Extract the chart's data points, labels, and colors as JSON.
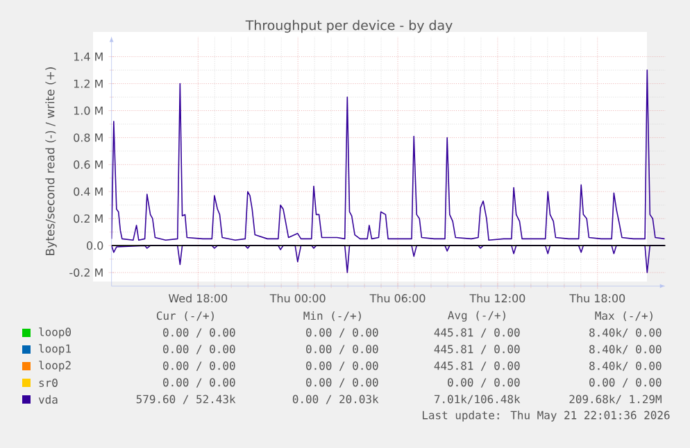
{
  "chart_data": {
    "type": "line",
    "title": "Throughput per device - by day",
    "ylabel": "Bytes/second read (-) / write (+)",
    "xlim": [
      "2026-05-20T12:48",
      "2026-05-21T22:05"
    ],
    "xticks": [
      {
        "value": "2026-05-20T18:00",
        "label": "Wed 18:00"
      },
      {
        "value": "2026-05-21T00:00",
        "label": "Thu 00:00"
      },
      {
        "value": "2026-05-21T06:00",
        "label": "Thu 06:00"
      },
      {
        "value": "2026-05-21T12:00",
        "label": "Thu 12:00"
      },
      {
        "value": "2026-05-21T18:00",
        "label": "Thu 18:00"
      }
    ],
    "ylim": [
      -0.3,
      1.55
    ],
    "yticks": [
      {
        "value": -0.2,
        "label": "-0.2 M"
      },
      {
        "value": 0,
        "label": "0.0"
      },
      {
        "value": 0.2,
        "label": "0.2 M"
      },
      {
        "value": 0.4,
        "label": "0.4 M"
      },
      {
        "value": 0.6,
        "label": "0.6 M"
      },
      {
        "value": 0.8,
        "label": "0.8 M"
      },
      {
        "value": 1.0,
        "label": "1.0 M"
      },
      {
        "value": 1.2,
        "label": "1.2 M"
      },
      {
        "value": 1.4,
        "label": "1.4 M"
      }
    ],
    "grid": true,
    "legend": "bottom",
    "ref_lines": [
      {
        "axis": "y",
        "value": 0,
        "color": "#000000"
      }
    ],
    "series": [
      {
        "name": "loop0",
        "color": "#00cc00"
      },
      {
        "name": "loop1",
        "color": "#0066b3"
      },
      {
        "name": "loop2",
        "color": "#ff8000"
      },
      {
        "name": "sr0",
        "color": "#ffcc00"
      },
      {
        "name": "vda",
        "color": "#330099",
        "x": [
          "2026-05-20T12:48",
          "2026-05-20T12:56",
          "2026-05-20T13:06",
          "2026-05-20T13:13",
          "2026-05-20T13:20",
          "2026-05-20T13:26",
          "2026-05-20T14:06",
          "2026-05-20T14:18",
          "2026-05-20T14:26",
          "2026-05-20T14:48",
          "2026-05-20T14:56",
          "2026-05-20T15:08",
          "2026-05-20T15:16",
          "2026-05-20T15:25",
          "2026-05-20T16:03",
          "2026-05-20T16:46",
          "2026-05-20T16:55",
          "2026-05-20T17:03",
          "2026-05-20T17:13",
          "2026-05-20T17:20",
          "2026-05-20T18:17",
          "2026-05-20T18:50",
          "2026-05-20T18:59",
          "2026-05-20T19:10",
          "2026-05-20T19:18",
          "2026-05-20T19:27",
          "2026-05-20T20:14",
          "2026-05-20T20:50",
          "2026-05-20T20:59",
          "2026-05-20T21:07",
          "2026-05-20T21:15",
          "2026-05-20T21:25",
          "2026-05-20T22:10",
          "2026-05-20T22:49",
          "2026-05-20T22:57",
          "2026-05-20T23:07",
          "2026-05-20T23:17",
          "2026-05-20T23:26",
          "2026-05-20T23:59",
          "2026-05-21T00:11",
          "2026-05-21T00:49",
          "2026-05-21T00:57",
          "2026-05-21T01:06",
          "2026-05-21T01:16",
          "2026-05-21T01:26",
          "2026-05-21T02:21",
          "2026-05-21T02:49",
          "2026-05-21T02:58",
          "2026-05-21T03:06",
          "2026-05-21T03:14",
          "2026-05-21T03:25",
          "2026-05-21T03:44",
          "2026-05-21T04:10",
          "2026-05-21T04:17",
          "2026-05-21T04:26",
          "2026-05-21T04:51",
          "2026-05-21T04:59",
          "2026-05-21T05:16",
          "2026-05-21T05:25",
          "2026-05-21T06:15",
          "2026-05-21T06:50",
          "2026-05-21T06:58",
          "2026-05-21T07:08",
          "2026-05-21T07:18",
          "2026-05-21T07:26",
          "2026-05-21T08:11",
          "2026-05-21T08:50",
          "2026-05-21T08:58",
          "2026-05-21T09:07",
          "2026-05-21T09:18",
          "2026-05-21T09:28",
          "2026-05-21T10:25",
          "2026-05-21T10:50",
          "2026-05-21T10:58",
          "2026-05-21T11:08",
          "2026-05-21T11:20",
          "2026-05-21T11:28",
          "2026-05-21T12:22",
          "2026-05-21T12:50",
          "2026-05-21T12:58",
          "2026-05-21T13:07",
          "2026-05-21T13:19",
          "2026-05-21T13:28",
          "2026-05-21T14:19",
          "2026-05-21T14:52",
          "2026-05-21T15:01",
          "2026-05-21T15:09",
          "2026-05-21T15:21",
          "2026-05-21T15:29",
          "2026-05-21T16:16",
          "2026-05-21T16:52",
          "2026-05-21T17:01",
          "2026-05-21T17:09",
          "2026-05-21T17:21",
          "2026-05-21T17:29",
          "2026-05-21T18:13",
          "2026-05-21T18:51",
          "2026-05-21T18:59",
          "2026-05-21T19:08",
          "2026-05-21T19:19",
          "2026-05-21T19:28",
          "2026-05-21T20:09",
          "2026-05-21T20:51",
          "2026-05-21T20:59",
          "2026-05-21T21:09",
          "2026-05-21T21:19",
          "2026-05-21T21:28",
          "2026-05-21T22:02"
        ],
        "values": [
          0.05,
          0.92,
          0.27,
          0.25,
          0.11,
          0.05,
          0.04,
          0.15,
          0.04,
          0.05,
          0.38,
          0.23,
          0.2,
          0.06,
          0.04,
          0.05,
          1.2,
          0.22,
          0.23,
          0.06,
          0.05,
          0.05,
          0.37,
          0.27,
          0.23,
          0.06,
          0.04,
          0.05,
          0.4,
          0.37,
          0.27,
          0.08,
          0.05,
          0.05,
          0.3,
          0.27,
          0.16,
          0.06,
          0.09,
          0.05,
          0.05,
          0.44,
          0.23,
          0.23,
          0.06,
          0.06,
          0.05,
          1.1,
          0.25,
          0.22,
          0.08,
          0.05,
          0.05,
          0.15,
          0.05,
          0.06,
          0.25,
          0.23,
          0.05,
          0.05,
          0.05,
          0.81,
          0.23,
          0.2,
          0.06,
          0.05,
          0.05,
          0.8,
          0.23,
          0.18,
          0.06,
          0.05,
          0.06,
          0.28,
          0.33,
          0.2,
          0.04,
          0.05,
          0.05,
          0.43,
          0.23,
          0.18,
          0.05,
          0.05,
          0.05,
          0.4,
          0.23,
          0.18,
          0.06,
          0.05,
          0.05,
          0.45,
          0.23,
          0.2,
          0.06,
          0.05,
          0.05,
          0.39,
          0.27,
          0.16,
          0.06,
          0.05,
          0.05,
          1.3,
          0.23,
          0.2,
          0.06,
          0.05
        ]
      },
      {
        "color": "#330099",
        "x": [
          "2026-05-20T12:48",
          "2026-05-20T12:56",
          "2026-05-20T13:06",
          "2026-05-20T14:48",
          "2026-05-20T14:56",
          "2026-05-20T15:08",
          "2026-05-20T16:46",
          "2026-05-20T16:55",
          "2026-05-20T17:03",
          "2026-05-20T18:50",
          "2026-05-20T18:59",
          "2026-05-20T19:10",
          "2026-05-20T20:50",
          "2026-05-20T20:59",
          "2026-05-20T21:07",
          "2026-05-20T22:49",
          "2026-05-20T22:57",
          "2026-05-20T23:07",
          "2026-05-20T23:50",
          "2026-05-20T23:59",
          "2026-05-21T00:11",
          "2026-05-21T00:49",
          "2026-05-21T00:57",
          "2026-05-21T01:06",
          "2026-05-21T02:49",
          "2026-05-21T02:58",
          "2026-05-21T03:06",
          "2026-05-21T06:50",
          "2026-05-21T06:58",
          "2026-05-21T07:08",
          "2026-05-21T08:50",
          "2026-05-21T08:58",
          "2026-05-21T09:07",
          "2026-05-21T10:50",
          "2026-05-21T10:58",
          "2026-05-21T11:08",
          "2026-05-21T12:50",
          "2026-05-21T12:58",
          "2026-05-21T13:07",
          "2026-05-21T14:52",
          "2026-05-21T15:01",
          "2026-05-21T15:09",
          "2026-05-21T16:52",
          "2026-05-21T17:01",
          "2026-05-21T17:09",
          "2026-05-21T18:51",
          "2026-05-21T18:59",
          "2026-05-21T19:08",
          "2026-05-21T20:51",
          "2026-05-21T20:59",
          "2026-05-21T21:09",
          "2026-05-21T22:02"
        ],
        "values": [
          0,
          -0.05,
          -0.01,
          0,
          -0.02,
          0,
          0,
          -0.14,
          0,
          0,
          -0.02,
          0,
          0,
          -0.02,
          0,
          0,
          -0.03,
          0,
          0,
          -0.12,
          0,
          0,
          -0.02,
          0,
          0,
          -0.2,
          0,
          0,
          -0.08,
          0,
          0,
          -0.04,
          0,
          0,
          -0.02,
          0,
          0,
          -0.06,
          0,
          0,
          -0.06,
          0,
          0,
          -0.05,
          0,
          0,
          -0.06,
          0,
          0,
          -0.2,
          0,
          0
        ]
      }
    ],
    "annotations": [
      "Cur (-/+)",
      "Min (-/+)",
      "Avg (-/+)",
      "Max (-/+)",
      "0.00 /  0.00",
      "0.00 /  0.00",
      "445.81 /  0.00",
      "8.40k/  0.00",
      "0.00 /  0.00",
      "0.00 /  0.00",
      "445.81 /  0.00",
      "8.40k/  0.00",
      "0.00 /  0.00",
      "0.00 /  0.00",
      "445.81 /  0.00",
      "8.40k/  0.00",
      "0.00 /  0.00",
      "0.00 /  0.00",
      "0.00 /  0.00",
      "0.00 /  0.00",
      "579.60 / 52.43k",
      "0.00 / 20.03k",
      "7.01k/106.48k",
      "209.68k/  1.29M",
      "Last update: Thu May 21 22:01:36 2026"
    ]
  }
}
